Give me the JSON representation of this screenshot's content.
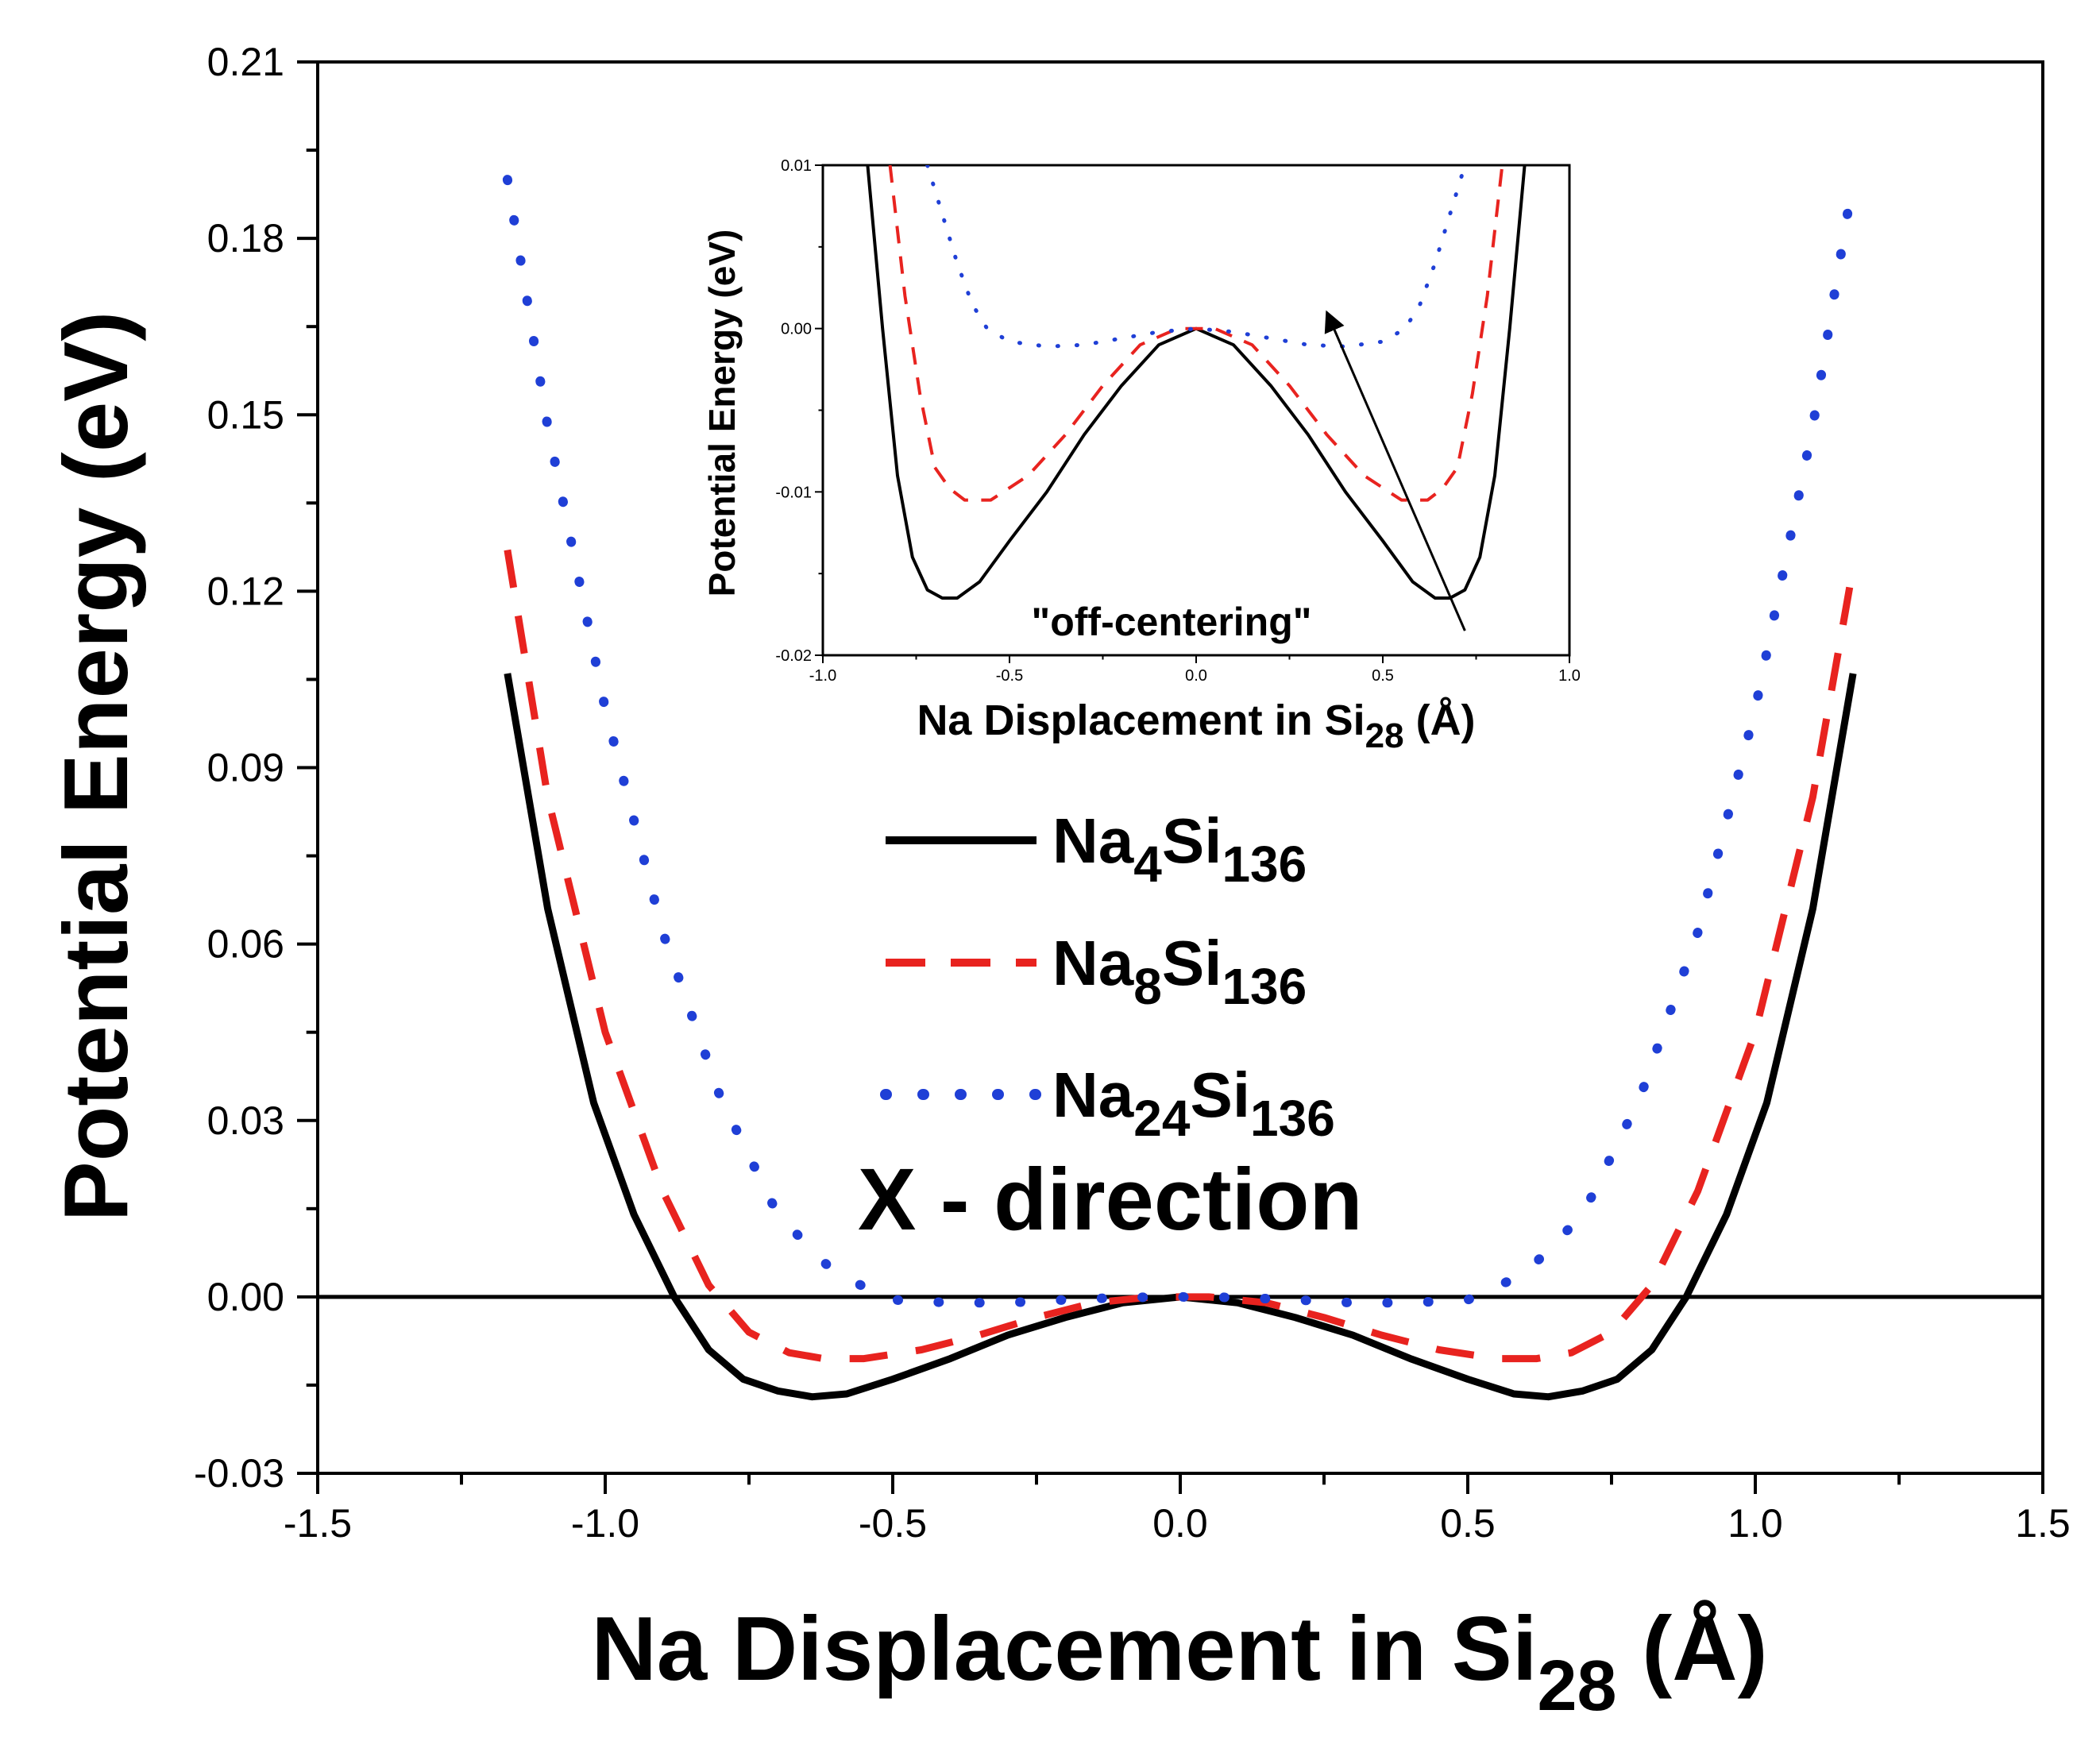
{
  "chart_data": [
    {
      "type": "line",
      "name": "main",
      "xlabel": "Na Displacement in Si",
      "xlabel_sub": "28",
      "xlabel_unit": "(Å)",
      "ylabel": "Potential Energy (eV)",
      "xlim": [
        -1.5,
        1.5
      ],
      "ylim": [
        -0.03,
        0.21
      ],
      "xticks": [
        -1.5,
        -1.0,
        -0.5,
        0.0,
        0.5,
        1.0,
        1.5
      ],
      "xtick_labels": [
        "-1.5",
        "-1.0",
        "-0.5",
        "0.0",
        "0.5",
        "1.0",
        "1.5"
      ],
      "yticks": [
        -0.03,
        0.0,
        0.03,
        0.06,
        0.09,
        0.12,
        0.15,
        0.18,
        0.21
      ],
      "ytick_labels": [
        "-0.03",
        "0.00",
        "0.03",
        "0.06",
        "0.09",
        "0.12",
        "0.15",
        "0.18",
        "0.21"
      ],
      "reference_line_y": 0.0,
      "annotation": "X - direction",
      "legend_position": "center",
      "series": [
        {
          "name": "Na4Si136",
          "label_main": "Na",
          "label_sub1": "4",
          "label_mid": "Si",
          "label_sub2": "136",
          "color": "#000000",
          "style": "solid",
          "x": [
            -1.17,
            -1.1,
            -1.02,
            -0.95,
            -0.88,
            -0.82,
            -0.76,
            -0.7,
            -0.64,
            -0.58,
            -0.5,
            -0.4,
            -0.3,
            -0.2,
            -0.1,
            0.0,
            0.1,
            0.2,
            0.3,
            0.4,
            0.5,
            0.58,
            0.64,
            0.7,
            0.76,
            0.82,
            0.88,
            0.95,
            1.02,
            1.1,
            1.17
          ],
          "y": [
            0.106,
            0.066,
            0.033,
            0.014,
            0.0,
            -0.009,
            -0.014,
            -0.016,
            -0.017,
            -0.0165,
            -0.014,
            -0.0105,
            -0.0065,
            -0.0035,
            -0.001,
            0.0,
            -0.001,
            -0.0035,
            -0.0065,
            -0.0105,
            -0.014,
            -0.0165,
            -0.017,
            -0.016,
            -0.014,
            -0.009,
            0.0,
            0.014,
            0.033,
            0.066,
            0.106
          ]
        },
        {
          "name": "Na8Si136",
          "label_main": "Na",
          "label_sub1": "8",
          "label_mid": "Si",
          "label_sub2": "136",
          "color": "#e8231f",
          "style": "dashed",
          "x": [
            -1.17,
            -1.1,
            -1.0,
            -0.9,
            -0.82,
            -0.75,
            -0.68,
            -0.62,
            -0.55,
            -0.45,
            -0.35,
            -0.25,
            -0.15,
            -0.05,
            0.0,
            0.05,
            0.15,
            0.25,
            0.35,
            0.45,
            0.55,
            0.62,
            0.68,
            0.75,
            0.82,
            0.9,
            1.0,
            1.1,
            1.17
          ],
          "y": [
            0.127,
            0.085,
            0.045,
            0.018,
            0.002,
            -0.006,
            -0.0095,
            -0.0105,
            -0.0105,
            -0.009,
            -0.0065,
            -0.0035,
            -0.001,
            0.0,
            0.0,
            0.0,
            -0.001,
            -0.0035,
            -0.0065,
            -0.009,
            -0.0105,
            -0.0105,
            -0.0095,
            -0.006,
            0.002,
            0.018,
            0.045,
            0.085,
            0.124
          ]
        },
        {
          "name": "Na24Si136",
          "label_main": "Na",
          "label_sub1": "24",
          "label_mid": "Si",
          "label_sub2": "136",
          "color": "#1f3fd6",
          "style": "dotted",
          "x": [
            -1.17,
            -1.1,
            -1.0,
            -0.9,
            -0.8,
            -0.7,
            -0.6,
            -0.5,
            -0.4,
            -0.3,
            -0.2,
            -0.1,
            0.0,
            0.1,
            0.2,
            0.3,
            0.4,
            0.5,
            0.6,
            0.7,
            0.8,
            0.9,
            1.0,
            1.1,
            1.17
          ],
          "y": [
            0.19,
            0.148,
            0.1,
            0.062,
            0.034,
            0.014,
            0.004,
            -0.0005,
            -0.001,
            -0.001,
            -0.0005,
            -0.0001,
            0.0,
            -0.0001,
            -0.0005,
            -0.001,
            -0.001,
            -0.0005,
            0.004,
            0.014,
            0.034,
            0.062,
            0.1,
            0.148,
            0.19
          ]
        }
      ]
    },
    {
      "type": "line",
      "name": "inset",
      "xlabel": "Na Displacement in Si",
      "xlabel_sub": "28",
      "xlabel_unit": "(Å)",
      "ylabel": "Potential Energy (eV)",
      "xlim": [
        -1.0,
        1.0
      ],
      "ylim": [
        -0.02,
        0.01
      ],
      "xticks": [
        -1.0,
        -0.5,
        0.0,
        0.5,
        1.0
      ],
      "xtick_labels": [
        "-1.0",
        "-0.5",
        "0.0",
        "0.5",
        "1.0"
      ],
      "yticks": [
        -0.02,
        -0.01,
        0.0,
        0.01
      ],
      "ytick_labels": [
        "-0.02",
        "-0.01",
        "0.00",
        "0.01"
      ],
      "annotation": "\"off-centering\"",
      "arrow": {
        "from": [
          0.72,
          -0.0185
        ],
        "to": [
          0.35,
          0.001
        ]
      },
      "series": [
        {
          "name": "Na4Si136",
          "color": "#000000",
          "style": "solid",
          "x": [
            -0.88,
            -0.84,
            -0.8,
            -0.76,
            -0.72,
            -0.68,
            -0.64,
            -0.58,
            -0.5,
            -0.4,
            -0.3,
            -0.2,
            -0.1,
            0.0,
            0.1,
            0.2,
            0.3,
            0.4,
            0.5,
            0.58,
            0.64,
            0.68,
            0.72,
            0.76,
            0.8,
            0.84,
            0.88
          ],
          "y": [
            0.01,
            0.0,
            -0.009,
            -0.014,
            -0.016,
            -0.0165,
            -0.0165,
            -0.0155,
            -0.013,
            -0.01,
            -0.0065,
            -0.0035,
            -0.001,
            0.0,
            -0.001,
            -0.0035,
            -0.0065,
            -0.01,
            -0.013,
            -0.0155,
            -0.0165,
            -0.0165,
            -0.016,
            -0.014,
            -0.009,
            0.0,
            0.01
          ]
        },
        {
          "name": "Na8Si136",
          "color": "#e8231f",
          "style": "dashed",
          "x": [
            -0.82,
            -0.78,
            -0.74,
            -0.7,
            -0.66,
            -0.62,
            -0.55,
            -0.45,
            -0.35,
            -0.25,
            -0.15,
            -0.05,
            0.0,
            0.05,
            0.15,
            0.25,
            0.35,
            0.45,
            0.55,
            0.62,
            0.66,
            0.7,
            0.74,
            0.78,
            0.82
          ],
          "y": [
            0.01,
            0.002,
            -0.004,
            -0.0085,
            -0.0098,
            -0.0105,
            -0.0105,
            -0.009,
            -0.0065,
            -0.0035,
            -0.001,
            0.0,
            0.0,
            0.0,
            -0.001,
            -0.0035,
            -0.0065,
            -0.009,
            -0.0105,
            -0.0105,
            -0.0098,
            -0.0085,
            -0.004,
            0.002,
            0.01
          ]
        },
        {
          "name": "Na24Si136",
          "color": "#1f3fd6",
          "style": "dotted",
          "x": [
            -0.72,
            -0.68,
            -0.64,
            -0.6,
            -0.56,
            -0.5,
            -0.4,
            -0.3,
            -0.2,
            -0.1,
            0.0,
            0.1,
            0.2,
            0.3,
            0.4,
            0.5,
            0.56,
            0.6,
            0.64,
            0.68,
            0.72
          ],
          "y": [
            0.01,
            0.007,
            0.004,
            0.0015,
            0.0,
            -0.0008,
            -0.0011,
            -0.001,
            -0.0006,
            -0.0002,
            0.0,
            -0.0002,
            -0.0006,
            -0.001,
            -0.0011,
            -0.0008,
            0.0,
            0.0015,
            0.004,
            0.007,
            0.01
          ]
        }
      ]
    }
  ]
}
